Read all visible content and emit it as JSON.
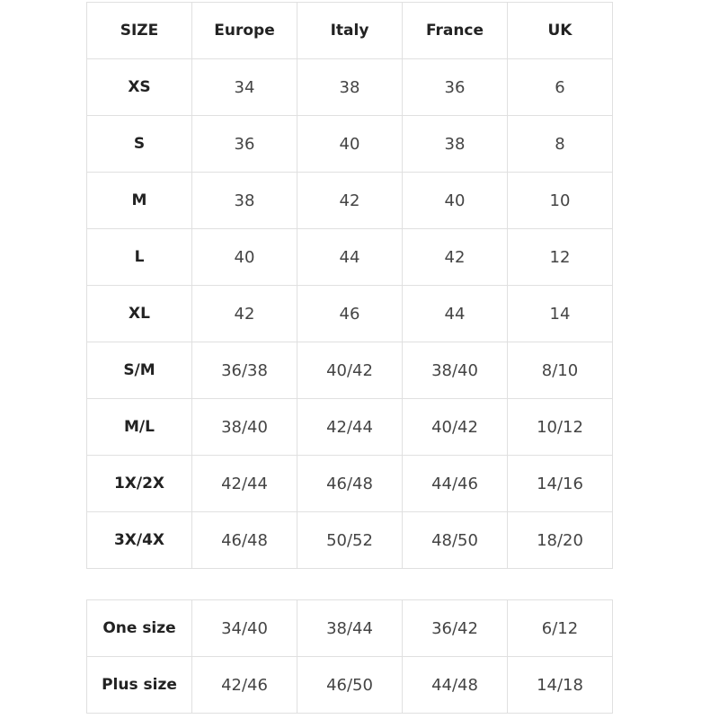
{
  "table1": {
    "headers": [
      "SIZE",
      "Europe",
      "Italy",
      "France",
      "UK"
    ],
    "rows": [
      [
        "XS",
        "34",
        "38",
        "36",
        "6"
      ],
      [
        "S",
        "36",
        "40",
        "38",
        "8"
      ],
      [
        "M",
        "38",
        "42",
        "40",
        "10"
      ],
      [
        "L",
        "40",
        "44",
        "42",
        "12"
      ],
      [
        "XL",
        "42",
        "46",
        "44",
        "14"
      ],
      [
        "S/M",
        "36/38",
        "40/42",
        "38/40",
        "8/10"
      ],
      [
        "M/L",
        "38/40",
        "42/44",
        "40/42",
        "10/12"
      ],
      [
        "1X/2X",
        "42/44",
        "46/48",
        "44/46",
        "14/16"
      ],
      [
        "3X/4X",
        "46/48",
        "50/52",
        "48/50",
        "18/20"
      ]
    ]
  },
  "table2": {
    "rows": [
      [
        "One size",
        "34/40",
        "38/44",
        "36/42",
        "6/12"
      ],
      [
        "Plus size",
        "42/46",
        "46/50",
        "44/48",
        "14/18"
      ]
    ]
  }
}
